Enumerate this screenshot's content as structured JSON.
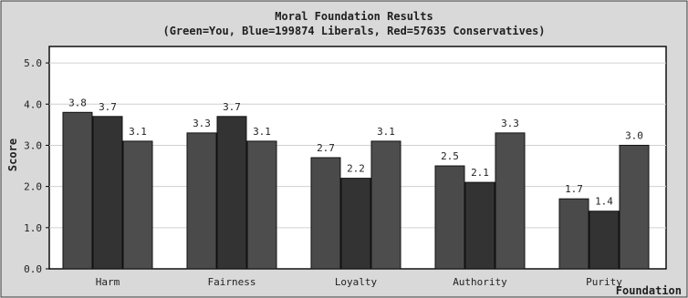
{
  "chart_data": {
    "type": "bar",
    "title": "Moral Foundation Results",
    "subtitle": "(Green=You, Blue=199874 Liberals, Red=57635 Conservatives)",
    "xlabel": "Foundation",
    "ylabel": "Score",
    "categories": [
      "Harm",
      "Fairness",
      "Loyalty",
      "Authority",
      "Purity"
    ],
    "series": [
      {
        "name": "You",
        "values": [
          3.8,
          3.3,
          2.7,
          2.5,
          1.7
        ],
        "color": "#4a4a4a"
      },
      {
        "name": "Liberals",
        "values": [
          3.7,
          3.7,
          2.2,
          2.1,
          1.4
        ],
        "color": "#333333"
      },
      {
        "name": "Conservatives",
        "values": [
          3.1,
          3.1,
          3.1,
          3.3,
          3.0
        ],
        "color": "#4d4d4d"
      }
    ],
    "value_labels": [
      [
        "3.8",
        "3.7",
        "3.1"
      ],
      [
        "3.3",
        "3.7",
        "3.1"
      ],
      [
        "2.7",
        "2.2",
        "3.1"
      ],
      [
        "2.5",
        "2.1",
        "3.3"
      ],
      [
        "1.7",
        "1.4",
        "3.0"
      ]
    ],
    "yticks": [
      "0.0",
      "1.0",
      "2.0",
      "3.0",
      "4.0",
      "5.0"
    ],
    "ylim": [
      0,
      5.4
    ],
    "grid": true,
    "legend": "none",
    "colors": {
      "panel_background": "#d9d9d9",
      "plot_background": "#ffffff",
      "frame": "#000000",
      "grid": "#d0d0d0",
      "text": "#1f1f1f",
      "bar_outline": "#111111"
    }
  }
}
